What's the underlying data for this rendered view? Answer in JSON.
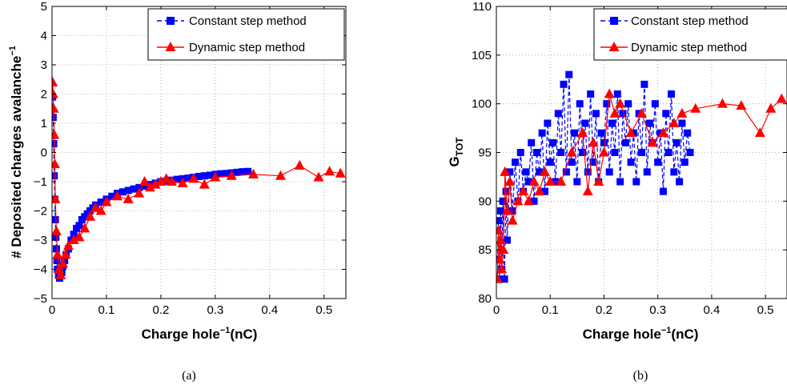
{
  "chart_data": [
    {
      "type": "line",
      "caption": "(a)",
      "xlabel": "Charge hole",
      "xlabel_sup": "−1",
      "xlabel_unit": "(nC)",
      "ylabel": "# Deposited charges avalanche",
      "ylabel_sup": "−1",
      "xlim": [
        0,
        0.54
      ],
      "ylim": [
        -5,
        5
      ],
      "xticks": [
        0,
        0.1,
        0.2,
        0.3,
        0.4,
        0.5
      ],
      "xtick_labels": [
        "0",
        "0.1",
        "0.2",
        "0.3",
        "0.4",
        "0.5"
      ],
      "yticks": [
        -5,
        -4,
        -3,
        -2,
        -1,
        0,
        1,
        2,
        3,
        4,
        5
      ],
      "ytick_labels": [
        "−5",
        "−4",
        "−3",
        "−2",
        "−1",
        "0",
        "1",
        "2",
        "3",
        "4",
        "5"
      ],
      "grid": true,
      "legend_position": "top-right",
      "series": [
        {
          "name": "Constant step method",
          "color": "#0000ff",
          "marker": "square",
          "linestyle": "dashed",
          "x": [
            0.001,
            0.002,
            0.003,
            0.004,
            0.005,
            0.006,
            0.007,
            0.008,
            0.009,
            0.01,
            0.012,
            0.014,
            0.016,
            0.018,
            0.02,
            0.023,
            0.026,
            0.03,
            0.035,
            0.04,
            0.045,
            0.05,
            0.055,
            0.06,
            0.065,
            0.07,
            0.075,
            0.08,
            0.09,
            0.1,
            0.11,
            0.12,
            0.13,
            0.14,
            0.15,
            0.16,
            0.17,
            0.18,
            0.19,
            0.2,
            0.21,
            0.22,
            0.23,
            0.24,
            0.25,
            0.26,
            0.27,
            0.28,
            0.29,
            0.3,
            0.31,
            0.32,
            0.33,
            0.34,
            0.35,
            0.36
          ],
          "y": [
            1.9,
            1.2,
            0.3,
            -0.8,
            -1.6,
            -2.3,
            -2.9,
            -3.3,
            -3.7,
            -4.0,
            -4.2,
            -4.3,
            -4.2,
            -4.1,
            -3.9,
            -3.7,
            -3.5,
            -3.3,
            -3.0,
            -2.8,
            -2.6,
            -2.5,
            -2.3,
            -2.2,
            -2.1,
            -2.0,
            -1.9,
            -1.8,
            -1.7,
            -1.6,
            -1.5,
            -1.4,
            -1.35,
            -1.3,
            -1.25,
            -1.2,
            -1.15,
            -1.1,
            -1.05,
            -1.0,
            -0.98,
            -0.95,
            -0.92,
            -0.9,
            -0.88,
            -0.85,
            -0.82,
            -0.8,
            -0.78,
            -0.75,
            -0.73,
            -0.72,
            -0.7,
            -0.68,
            -0.66,
            -0.65
          ]
        },
        {
          "name": "Dynamic step method",
          "color": "#ff0000",
          "marker": "triangle",
          "linestyle": "solid",
          "x": [
            0.001,
            0.002,
            0.003,
            0.004,
            0.005,
            0.006,
            0.008,
            0.01,
            0.013,
            0.016,
            0.02,
            0.025,
            0.03,
            0.04,
            0.05,
            0.06,
            0.07,
            0.08,
            0.09,
            0.1,
            0.12,
            0.14,
            0.16,
            0.17,
            0.18,
            0.19,
            0.2,
            0.21,
            0.22,
            0.24,
            0.26,
            0.28,
            0.3,
            0.33,
            0.37,
            0.42,
            0.455,
            0.49,
            0.51,
            0.53
          ],
          "y": [
            2.4,
            2.0,
            1.5,
            0.6,
            -0.4,
            -1.6,
            -2.7,
            -3.5,
            -4.0,
            -4.2,
            -3.8,
            -3.5,
            -3.2,
            -3.0,
            -2.9,
            -2.6,
            -2.2,
            -1.9,
            -2.0,
            -1.7,
            -1.5,
            -1.6,
            -1.4,
            -1.0,
            -1.2,
            -1.1,
            -1.0,
            -0.9,
            -1.0,
            -1.05,
            -0.9,
            -1.1,
            -0.85,
            -0.8,
            -0.75,
            -0.8,
            -0.45,
            -0.85,
            -0.65,
            -0.72
          ]
        }
      ]
    },
    {
      "type": "line",
      "caption": "(b)",
      "xlabel": "Charge hole",
      "xlabel_sup": "−1",
      "xlabel_unit": "(nC)",
      "ylabel": "G",
      "ylabel_sub": "TOT",
      "xlim": [
        0,
        0.54
      ],
      "ylim": [
        80,
        110
      ],
      "xticks": [
        0,
        0.1,
        0.2,
        0.3,
        0.4,
        0.5
      ],
      "xtick_labels": [
        "0",
        "0.1",
        "0.2",
        "0.3",
        "0.4",
        "0.5"
      ],
      "yticks": [
        80,
        85,
        90,
        95,
        100,
        105,
        110
      ],
      "ytick_labels": [
        "80",
        "85",
        "90",
        "95",
        "100",
        "105",
        "110"
      ],
      "grid": true,
      "legend_position": "top-right",
      "series": [
        {
          "name": "Constant step method",
          "color": "#0000ff",
          "marker": "square",
          "linestyle": "dashed",
          "x": [
            0.002,
            0.004,
            0.006,
            0.008,
            0.01,
            0.012,
            0.015,
            0.018,
            0.02,
            0.025,
            0.03,
            0.035,
            0.04,
            0.045,
            0.05,
            0.055,
            0.06,
            0.065,
            0.07,
            0.075,
            0.08,
            0.085,
            0.09,
            0.095,
            0.1,
            0.105,
            0.11,
            0.115,
            0.12,
            0.125,
            0.13,
            0.135,
            0.14,
            0.145,
            0.15,
            0.155,
            0.16,
            0.165,
            0.17,
            0.175,
            0.18,
            0.185,
            0.19,
            0.195,
            0.2,
            0.205,
            0.21,
            0.215,
            0.22,
            0.225,
            0.23,
            0.235,
            0.24,
            0.245,
            0.25,
            0.255,
            0.26,
            0.265,
            0.27,
            0.275,
            0.28,
            0.285,
            0.29,
            0.295,
            0.3,
            0.305,
            0.31,
            0.315,
            0.32,
            0.325,
            0.33,
            0.335,
            0.34,
            0.345,
            0.35,
            0.355,
            0.36
          ],
          "y": [
            84,
            88,
            82,
            89,
            83,
            90,
            82,
            91,
            86,
            93,
            89,
            94,
            90,
            95,
            91,
            93,
            92,
            96,
            90,
            95,
            93,
            97,
            91,
            98,
            94,
            96,
            92,
            99,
            95,
            102,
            93,
            103,
            94,
            97,
            92,
            100,
            95,
            98,
            93,
            101,
            94,
            99,
            92,
            97,
            96,
            100,
            93,
            98,
            95,
            101,
            92,
            99,
            96,
            100,
            94,
            97,
            92,
            99,
            95,
            102,
            93,
            98,
            96,
            100,
            94,
            97,
            91,
            99,
            95,
            101,
            93,
            96,
            92,
            98,
            94,
            97,
            95
          ]
        },
        {
          "name": "Dynamic step method",
          "color": "#ff0000",
          "marker": "triangle",
          "linestyle": "solid",
          "x": [
            0.002,
            0.004,
            0.006,
            0.008,
            0.01,
            0.013,
            0.016,
            0.02,
            0.025,
            0.03,
            0.04,
            0.05,
            0.06,
            0.07,
            0.08,
            0.09,
            0.1,
            0.12,
            0.14,
            0.16,
            0.17,
            0.18,
            0.19,
            0.2,
            0.21,
            0.22,
            0.23,
            0.25,
            0.27,
            0.29,
            0.31,
            0.33,
            0.345,
            0.37,
            0.42,
            0.455,
            0.49,
            0.51,
            0.53
          ],
          "y": [
            82,
            87,
            84,
            86,
            83,
            85,
            93,
            89,
            92,
            88,
            90,
            91,
            90,
            92,
            91,
            93,
            92,
            92,
            95,
            97,
            91,
            96,
            92,
            95,
            101,
            99,
            100,
            97,
            99,
            96,
            97,
            98,
            99,
            99.5,
            100,
            99.8,
            97,
            99.5,
            100.5
          ]
        }
      ]
    }
  ]
}
